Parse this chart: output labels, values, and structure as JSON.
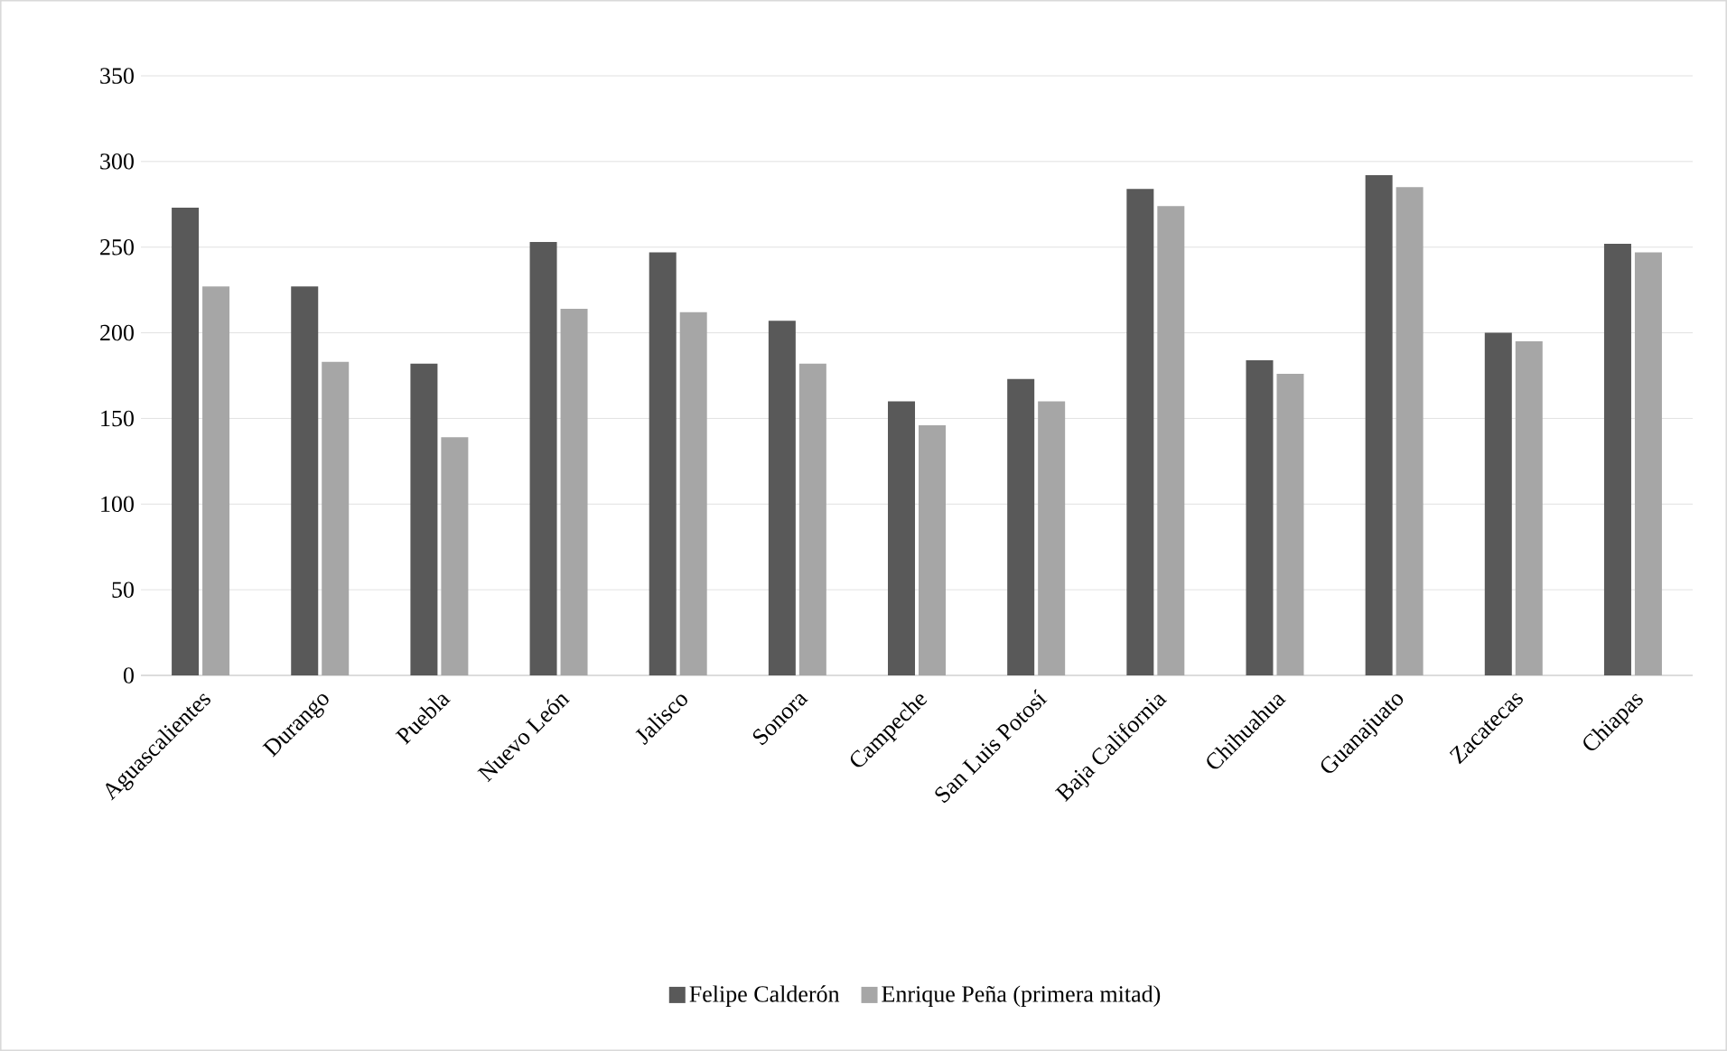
{
  "chart_data": {
    "type": "bar",
    "categories": [
      "Aguascalientes",
      "Durango",
      "Puebla",
      "Nuevo León",
      "Jalisco",
      "Sonora",
      "Campeche",
      "San Luis Potosí",
      "Baja California",
      "Chihuahua",
      "Guanajuato",
      "Zacatecas",
      "Chiapas"
    ],
    "series": [
      {
        "name": "Felipe Calderón",
        "color": "#595959",
        "values": [
          273,
          227,
          182,
          253,
          247,
          207,
          160,
          173,
          284,
          184,
          292,
          200,
          252
        ]
      },
      {
        "name": "Enrique Peña (primera mitad)",
        "color": "#a6a6a6",
        "values": [
          227,
          183,
          139,
          214,
          212,
          182,
          146,
          160,
          274,
          176,
          285,
          195,
          247
        ]
      }
    ],
    "ylim": [
      0,
      350
    ],
    "yticks": [
      0,
      50,
      100,
      150,
      200,
      250,
      300,
      350
    ],
    "grid": "y",
    "legend": "bottom"
  }
}
